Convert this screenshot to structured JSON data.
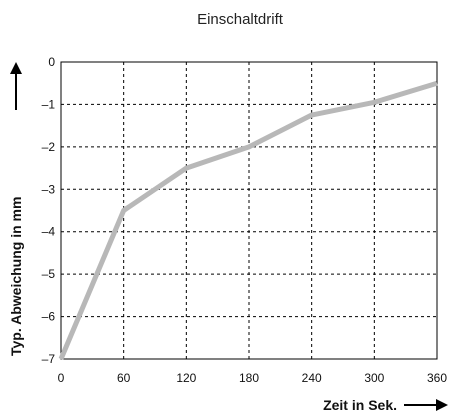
{
  "chart_data": {
    "type": "line",
    "title": "Einschaltdrift",
    "xlabel": "Zeit in Sek.",
    "ylabel": "Typ. Abweichung in mm",
    "xlim": [
      0,
      360
    ],
    "ylim": [
      -7,
      0
    ],
    "x_ticks": [
      0,
      60,
      120,
      180,
      240,
      300,
      360
    ],
    "y_ticks": [
      0,
      -1,
      -2,
      -3,
      -4,
      -5,
      -6,
      -7
    ],
    "x_tick_labels": [
      "0",
      "60",
      "120",
      "180",
      "240",
      "300",
      "360"
    ],
    "y_tick_labels": [
      "0",
      "–1",
      "–2",
      "–3",
      "–4",
      "–5",
      "–6",
      "–7"
    ],
    "grid": true,
    "series": [
      {
        "color": "#b8b8b8",
        "x": [
          0,
          60,
          120,
          180,
          240,
          300,
          360
        ],
        "y": [
          -7,
          -3.5,
          -2.5,
          -2.0,
          -1.25,
          -0.95,
          -0.5
        ]
      }
    ],
    "colors": {
      "line": "#b8b8b8",
      "grid": "#000000",
      "frame": "#000000",
      "text": "#111111"
    }
  }
}
